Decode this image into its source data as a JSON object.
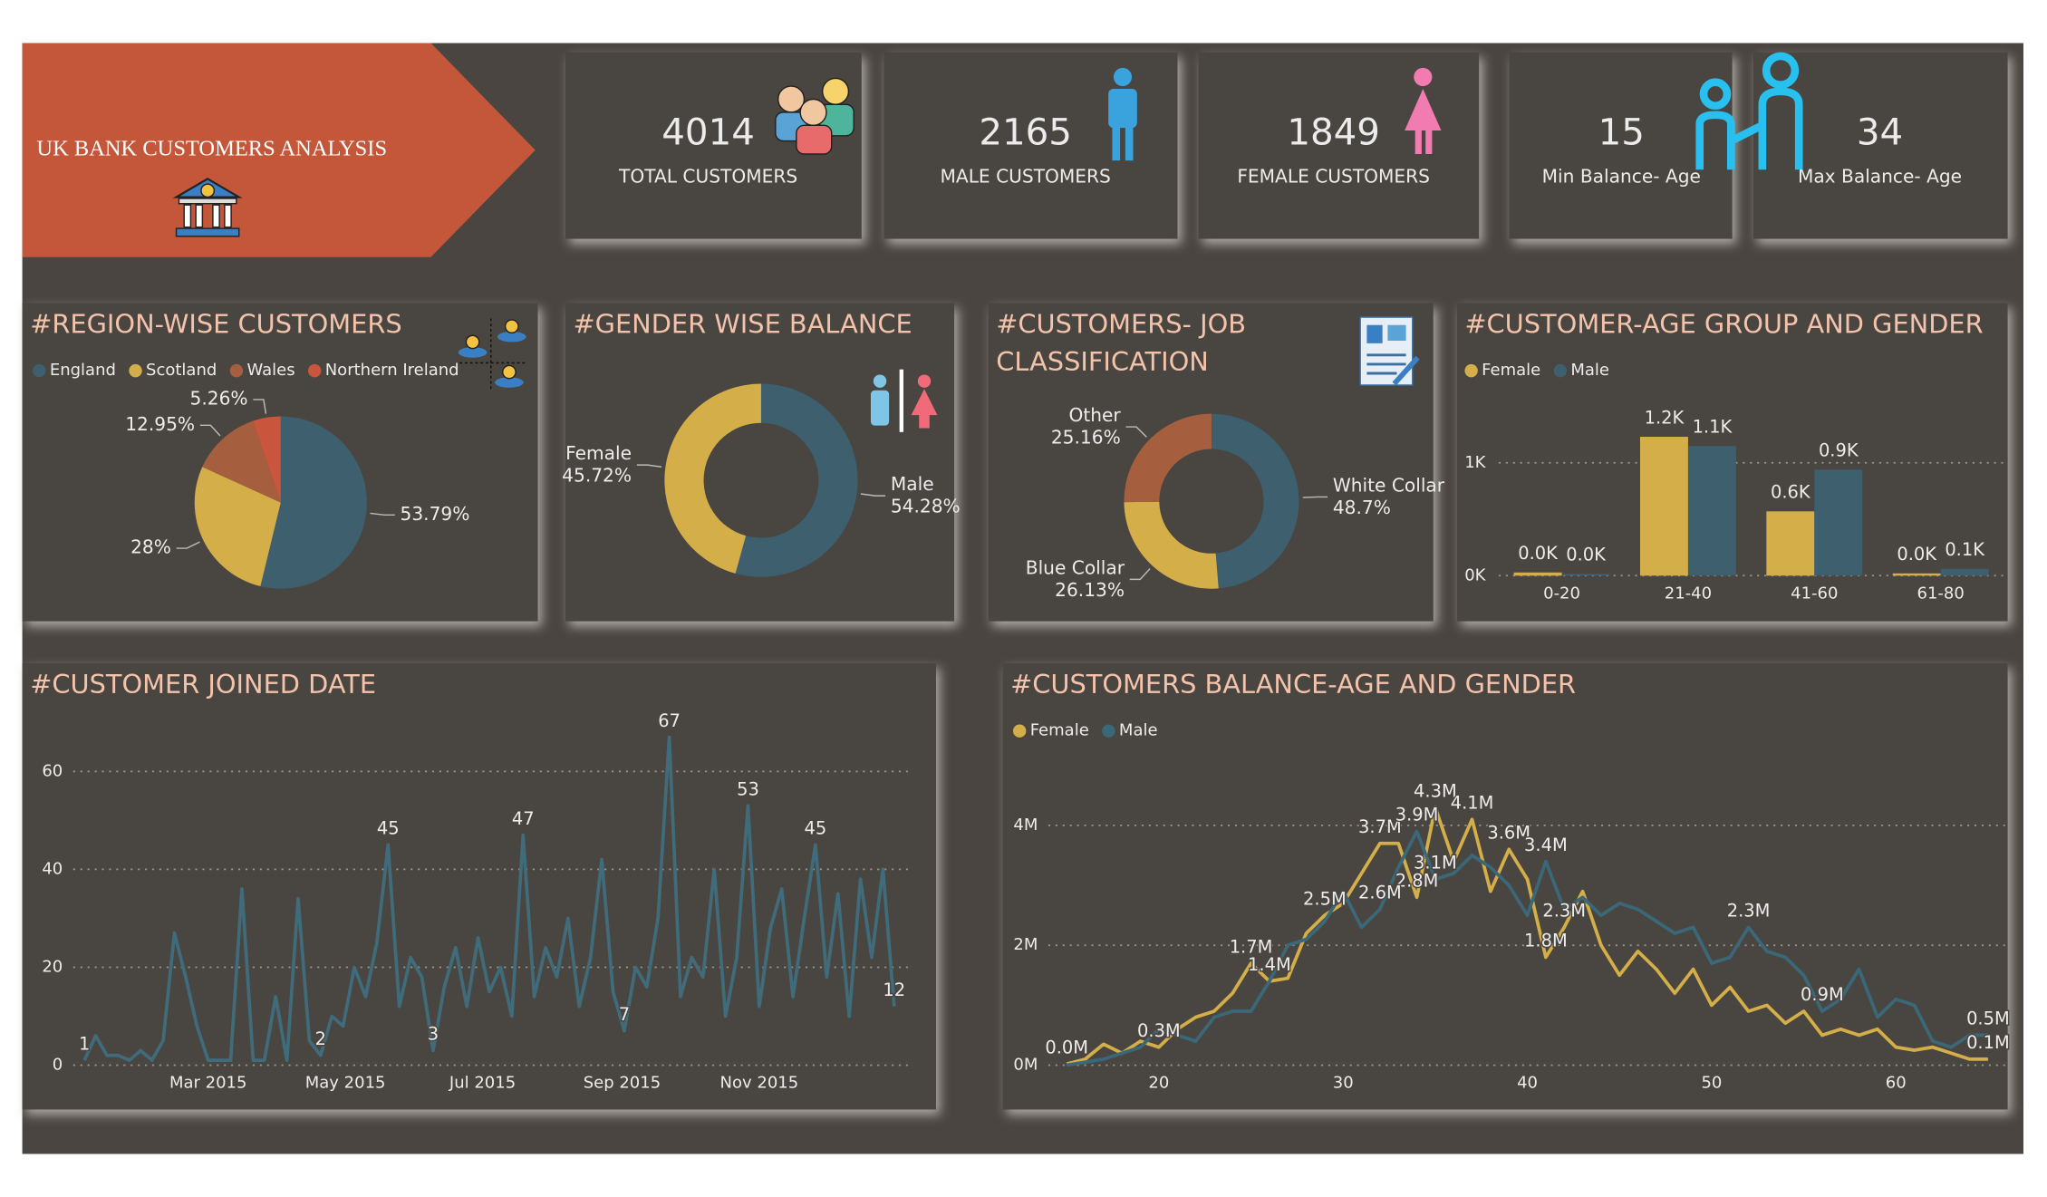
{
  "header": {
    "title": "UK BANK CUSTOMERS ANALYSIS"
  },
  "kpis": [
    {
      "value": 4014,
      "label": "TOTAL CUSTOMERS"
    },
    {
      "value": 2165,
      "label": "MALE CUSTOMERS"
    },
    {
      "value": 1849,
      "label": "FEMALE CUSTOMERS"
    },
    {
      "value": 15,
      "label": "Min Balance- Age"
    },
    {
      "value": 34,
      "label": "Max Balance- Age"
    }
  ],
  "chart_data": [
    {
      "type": "pie",
      "title": "#REGION-WISE CUSTOMERS",
      "categories": [
        "England",
        "Scotland",
        "Wales",
        "Northern Ireland"
      ],
      "values": [
        53.79,
        28,
        12.95,
        5.26
      ],
      "value_labels": [
        "53.79%",
        "28%",
        "12.95%",
        "5.26%"
      ],
      "colors": [
        "#3d5f6e",
        "#d4ae48",
        "#a65f3e",
        "#c9553c"
      ],
      "legend": "top-left"
    },
    {
      "type": "donut",
      "title": "#GENDER WISE BALANCE",
      "categories": [
        "Male",
        "Female"
      ],
      "values": [
        54.28,
        45.72
      ],
      "value_labels": [
        "54.28%",
        "45.72%"
      ],
      "colors": [
        "#3d5f6e",
        "#d4ae48"
      ]
    },
    {
      "type": "donut",
      "title": "#CUSTOMERS- JOB CLASSIFICATION",
      "categories": [
        "White Collar",
        "Blue Collar",
        "Other"
      ],
      "values": [
        48.7,
        26.13,
        25.16
      ],
      "value_labels": [
        "48.7%",
        "26.13%",
        "25.16%"
      ],
      "colors": [
        "#3d5f6e",
        "#d4ae48",
        "#a65f3e"
      ]
    },
    {
      "type": "bar",
      "title": "#CUSTOMER-AGE GROUP AND GENDER",
      "categories": [
        "0-20",
        "21-40",
        "41-60",
        "61-80"
      ],
      "series": [
        {
          "name": "Female",
          "color": "#d4ae48",
          "values": [
            28,
            1231,
            570,
            20
          ],
          "value_labels": [
            "0.0K",
            "1.2K",
            "0.6K",
            "0.0K"
          ]
        },
        {
          "name": "Male",
          "color": "#3d5f6e",
          "values": [
            16,
            1149,
            940,
            60
          ],
          "value_labels": [
            "0.0K",
            "1.1K",
            "0.9K",
            "0.1K"
          ]
        }
      ],
      "ylim": [
        0,
        1400
      ],
      "yticks": [
        {
          "value": 0,
          "label": "0K"
        },
        {
          "value": 1000,
          "label": "1K"
        }
      ],
      "grid": true,
      "legend": "top-left"
    },
    {
      "type": "line",
      "title": "#CUSTOMER JOINED DATE",
      "color": "#3f6b7a",
      "x": [
        5,
        10,
        15,
        20,
        25,
        30,
        35,
        40,
        45,
        50,
        55,
        60,
        65,
        70,
        75,
        80,
        85,
        90,
        95,
        100,
        105,
        110,
        115,
        120,
        125,
        130,
        135,
        140,
        145,
        150,
        155,
        160,
        165,
        170,
        175,
        180,
        185,
        190,
        195,
        200,
        205,
        210,
        215,
        220,
        225,
        230,
        235,
        240,
        245,
        250,
        255,
        260,
        265,
        270,
        275,
        280,
        285,
        290,
        295,
        300,
        305,
        310,
        315,
        320,
        325,
        330,
        335,
        340,
        345,
        350,
        355,
        360,
        365
      ],
      "values": [
        1,
        6,
        2,
        2,
        1,
        3,
        1,
        5,
        27,
        18,
        8,
        1,
        1,
        1,
        36,
        1,
        1,
        14,
        1,
        34,
        5,
        2,
        10,
        8,
        20,
        14,
        25,
        45,
        12,
        22,
        18,
        3,
        16,
        24,
        12,
        26,
        15,
        20,
        10,
        47,
        14,
        24,
        18,
        30,
        12,
        22,
        42,
        15,
        7,
        20,
        16,
        30,
        67,
        14,
        22,
        18,
        40,
        10,
        22,
        53,
        12,
        28,
        36,
        14,
        30,
        45,
        18,
        35,
        10,
        38,
        22,
        40,
        12
      ],
      "value_labels": [
        "1",
        null,
        null,
        null,
        null,
        null,
        null,
        null,
        null,
        null,
        null,
        null,
        null,
        null,
        null,
        null,
        null,
        null,
        null,
        null,
        null,
        "2",
        null,
        null,
        null,
        null,
        null,
        "45",
        null,
        null,
        null,
        "3",
        null,
        null,
        null,
        null,
        null,
        null,
        null,
        "47",
        null,
        null,
        null,
        null,
        null,
        null,
        null,
        null,
        "7",
        null,
        null,
        null,
        "67",
        null,
        null,
        null,
        null,
        null,
        null,
        "53",
        null,
        null,
        null,
        null,
        null,
        "45",
        null,
        null,
        null,
        null,
        null,
        null,
        "12"
      ],
      "xlim": [
        0,
        372
      ],
      "xticks": [
        {
          "value": 60,
          "label": "Mar 2015"
        },
        {
          "value": 121,
          "label": "May 2015"
        },
        {
          "value": 182,
          "label": "Jul 2015"
        },
        {
          "value": 244,
          "label": "Sep 2015"
        },
        {
          "value": 305,
          "label": "Nov 2015"
        }
      ],
      "ylim": [
        0,
        70
      ],
      "yticks": [
        0,
        20,
        40,
        60
      ],
      "grid": true
    },
    {
      "type": "line",
      "title": "#CUSTOMERS BALANCE-AGE AND GENDER",
      "x": [
        15,
        16,
        17,
        18,
        19,
        20,
        21,
        22,
        23,
        24,
        25,
        26,
        27,
        28,
        29,
        30,
        31,
        32,
        33,
        34,
        35,
        36,
        37,
        38,
        39,
        40,
        41,
        42,
        43,
        44,
        45,
        46,
        47,
        48,
        49,
        50,
        51,
        52,
        53,
        54,
        55,
        56,
        57,
        58,
        59,
        60,
        61,
        62,
        63,
        64,
        65
      ],
      "series": [
        {
          "name": "Female",
          "color": "#d4ae48",
          "values": [
            0.02,
            0.1,
            0.35,
            0.2,
            0.4,
            0.3,
            0.6,
            0.8,
            0.9,
            1.2,
            1.7,
            1.4,
            1.45,
            2.2,
            2.5,
            2.7,
            3.2,
            3.7,
            3.7,
            2.8,
            4.3,
            3.4,
            4.1,
            2.9,
            3.6,
            3.1,
            1.8,
            2.3,
            2.9,
            2.0,
            1.5,
            1.9,
            1.6,
            1.2,
            1.6,
            1.0,
            1.3,
            0.9,
            1.0,
            0.7,
            0.9,
            0.5,
            0.6,
            0.5,
            0.6,
            0.3,
            0.25,
            0.3,
            0.2,
            0.1,
            0.1
          ],
          "value_labels": [
            "0.0M",
            null,
            null,
            null,
            null,
            "0.3M",
            null,
            null,
            null,
            null,
            "1.7M",
            null,
            null,
            null,
            "2.5M",
            null,
            null,
            "3.7M",
            null,
            "2.8M",
            "4.3M",
            null,
            "4.1M",
            null,
            "3.6M",
            null,
            "1.8M",
            "2.3M",
            null,
            null,
            null,
            null,
            null,
            null,
            null,
            null,
            null,
            null,
            null,
            null,
            null,
            null,
            null,
            null,
            null,
            null,
            null,
            null,
            null,
            null,
            "0.1M"
          ]
        },
        {
          "name": "Male",
          "color": "#3b6878",
          "values": [
            0.0,
            0.05,
            0.1,
            0.2,
            0.3,
            0.6,
            0.5,
            0.4,
            0.8,
            0.9,
            0.9,
            1.4,
            2.0,
            2.1,
            2.4,
            2.9,
            2.3,
            2.6,
            3.3,
            3.9,
            3.1,
            3.2,
            3.5,
            3.3,
            3.0,
            2.5,
            3.4,
            2.6,
            2.8,
            2.5,
            2.7,
            2.6,
            2.4,
            2.2,
            2.3,
            1.7,
            1.8,
            2.3,
            1.9,
            1.8,
            1.5,
            0.9,
            1.1,
            1.6,
            0.8,
            1.1,
            1.0,
            0.4,
            0.3,
            0.5,
            0.5
          ],
          "value_labels": [
            null,
            null,
            null,
            null,
            null,
            null,
            null,
            null,
            null,
            null,
            null,
            "1.4M",
            null,
            null,
            null,
            null,
            null,
            "2.6M",
            null,
            "3.9M",
            "3.1M",
            null,
            null,
            null,
            null,
            null,
            "3.4M",
            null,
            null,
            null,
            null,
            null,
            null,
            null,
            null,
            null,
            null,
            "2.3M",
            null,
            null,
            null,
            "0.9M",
            null,
            null,
            null,
            null,
            null,
            null,
            null,
            null,
            "0.5M"
          ]
        }
      ],
      "xlim": [
        14,
        66
      ],
      "xticks": [
        20,
        30,
        40,
        50,
        60
      ],
      "ylim": [
        0,
        4.9
      ],
      "yticks": [
        {
          "value": 0,
          "label": "0M"
        },
        {
          "value": 2,
          "label": "2M"
        },
        {
          "value": 4,
          "label": "4M"
        }
      ],
      "grid": true,
      "legend": "top-left"
    }
  ]
}
